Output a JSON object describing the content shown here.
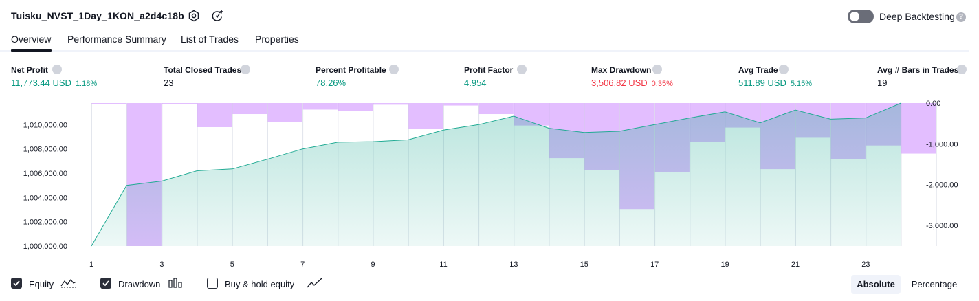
{
  "header": {
    "title": "Tuisku_NVST_1Day_1KON_a2d4c18b",
    "deep_backtesting_label": "Deep Backtesting",
    "deep_backtesting_enabled": false,
    "help_glyph": "?"
  },
  "tabs": [
    {
      "label": "Overview",
      "active": true
    },
    {
      "label": "Performance Summary",
      "active": false
    },
    {
      "label": "List of Trades",
      "active": false
    },
    {
      "label": "Properties",
      "active": false
    }
  ],
  "metrics": [
    {
      "label": "Net Profit",
      "value": "11,773.44 USD",
      "pct": "1.18%",
      "color": "#089981"
    },
    {
      "label": "Total Closed Trades",
      "value": "23",
      "pct": "",
      "color": "#131722"
    },
    {
      "label": "Percent Profitable",
      "value": "78.26%",
      "pct": "",
      "color": "#089981"
    },
    {
      "label": "Profit Factor",
      "value": "4.954",
      "pct": "",
      "color": "#089981"
    },
    {
      "label": "Max Drawdown",
      "value": "3,506.82 USD",
      "pct": "0.35%",
      "color": "#f23645"
    },
    {
      "label": "Avg Trade",
      "value": "511.89 USD",
      "pct": "5.15%",
      "color": "#089981"
    },
    {
      "label": "Avg # Bars in Trades",
      "value": "19",
      "pct": "",
      "color": "#131722"
    }
  ],
  "chart_data": {
    "type": "line+bar",
    "equity_axis": {
      "min": 1000000,
      "max": 1011773.44,
      "ticks": [
        "1,000,000.00",
        "1,002,000.00",
        "1,004,000.00",
        "1,006,000.00",
        "1,008,000.00",
        "1,010,000.00"
      ]
    },
    "drawdown_axis": {
      "min": -3506.82,
      "max": 0,
      "ticks": [
        "0.00",
        "-1,000.00",
        "-2,000.00",
        "-3,000.00"
      ]
    },
    "x_ticks": [
      "1",
      "3",
      "5",
      "7",
      "9",
      "11",
      "13",
      "15",
      "17",
      "19",
      "21",
      "23"
    ],
    "equity": [
      {
        "x": 1,
        "y": 1000000
      },
      {
        "x": 2,
        "y": 1005000
      },
      {
        "x": 3,
        "y": 1005350
      },
      {
        "x": 4,
        "y": 1006200
      },
      {
        "x": 5,
        "y": 1006350
      },
      {
        "x": 6,
        "y": 1007150
      },
      {
        "x": 7,
        "y": 1008000
      },
      {
        "x": 8,
        "y": 1008550
      },
      {
        "x": 9,
        "y": 1008600
      },
      {
        "x": 10,
        "y": 1008750
      },
      {
        "x": 11,
        "y": 1009550
      },
      {
        "x": 12,
        "y": 1010000
      },
      {
        "x": 13,
        "y": 1010700
      },
      {
        "x": 14,
        "y": 1009700
      },
      {
        "x": 15,
        "y": 1009350
      },
      {
        "x": 16,
        "y": 1009450
      },
      {
        "x": 17,
        "y": 1010000
      },
      {
        "x": 18,
        "y": 1010550
      },
      {
        "x": 19,
        "y": 1011050
      },
      {
        "x": 20,
        "y": 1010150
      },
      {
        "x": 21,
        "y": 1011200
      },
      {
        "x": 22,
        "y": 1010450
      },
      {
        "x": 23,
        "y": 1010550
      },
      {
        "x": 24,
        "y": 1011773.44
      }
    ],
    "drawdown": [
      {
        "x": 1,
        "y": -30
      },
      {
        "x": 2,
        "y": -3506.82
      },
      {
        "x": 3,
        "y": -30
      },
      {
        "x": 4,
        "y": -590
      },
      {
        "x": 5,
        "y": -270
      },
      {
        "x": 6,
        "y": -460
      },
      {
        "x": 7,
        "y": -160
      },
      {
        "x": 8,
        "y": -190
      },
      {
        "x": 9,
        "y": -40
      },
      {
        "x": 10,
        "y": -640
      },
      {
        "x": 11,
        "y": -60
      },
      {
        "x": 12,
        "y": -270
      },
      {
        "x": 13,
        "y": -550
      },
      {
        "x": 14,
        "y": -1350
      },
      {
        "x": 15,
        "y": -1650
      },
      {
        "x": 16,
        "y": -2600
      },
      {
        "x": 17,
        "y": -1700
      },
      {
        "x": 18,
        "y": -960
      },
      {
        "x": 19,
        "y": -600
      },
      {
        "x": 20,
        "y": -1620
      },
      {
        "x": 21,
        "y": -850
      },
      {
        "x": 22,
        "y": -1370
      },
      {
        "x": 23,
        "y": -1040
      },
      {
        "x": 24,
        "y": -1240
      }
    ],
    "colors": {
      "equity_line": "#22ab94",
      "equity_fill": "#22ab94",
      "drawdown_bar": "#c77dff",
      "grid": "#e0e3eb"
    }
  },
  "legend": {
    "equity_label": "Equity",
    "drawdown_label": "Drawdown",
    "buyhold_label": "Buy & hold equity",
    "equity_checked": true,
    "drawdown_checked": true,
    "buyhold_checked": false
  },
  "view_toggle": {
    "absolute_label": "Absolute",
    "percentage_label": "Percentage",
    "selected": "Absolute"
  }
}
